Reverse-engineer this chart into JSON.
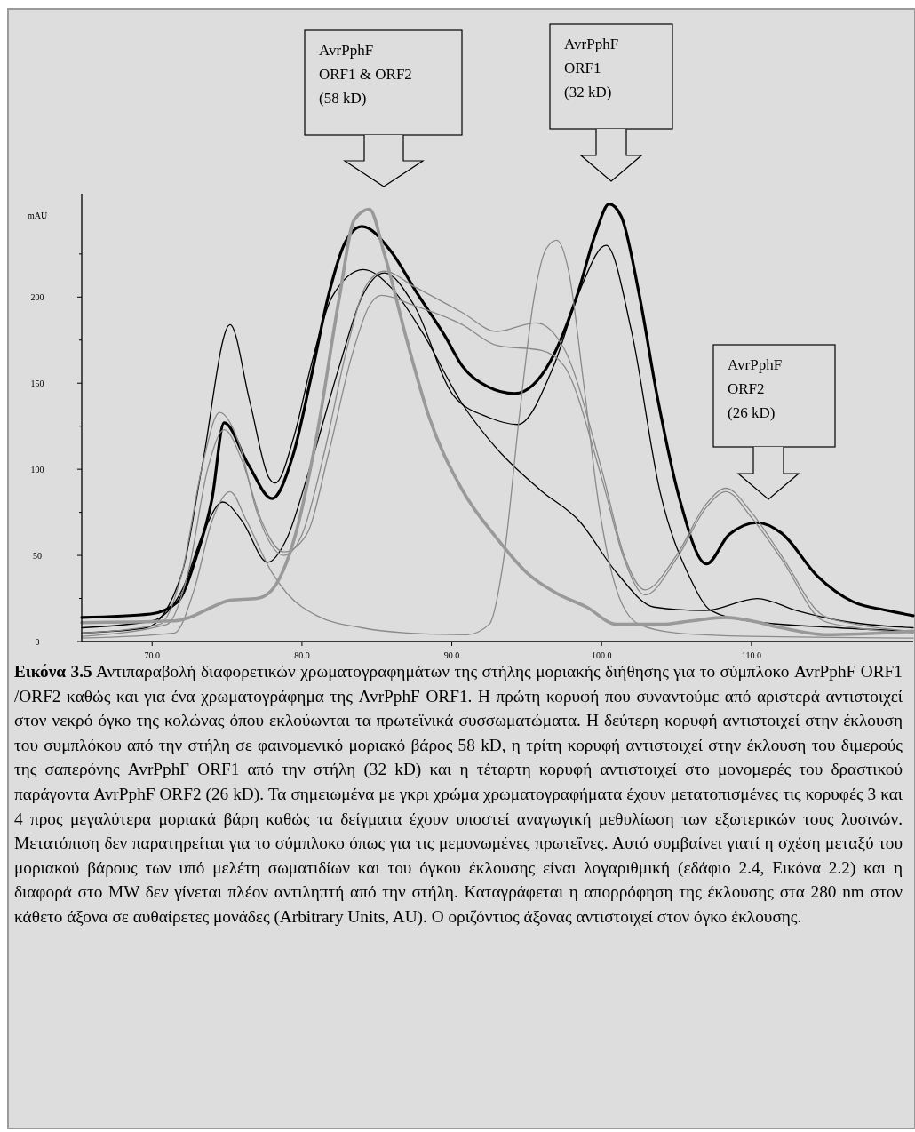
{
  "chart_data": {
    "type": "line",
    "ylabel": "mAU",
    "xlim": [
      65.3,
      120.8
    ],
    "ylim": [
      0,
      260
    ],
    "xticks": [
      {
        "value": 70,
        "label": "70.0"
      },
      {
        "value": 80,
        "label": "80.0"
      },
      {
        "value": 90,
        "label": "90.0"
      },
      {
        "value": 100,
        "label": "100.0"
      },
      {
        "value": 110,
        "label": "110.0"
      }
    ],
    "yticks": [
      0,
      {
        "value": 25,
        "label": null
      },
      50,
      {
        "value": 75,
        "label": null
      },
      100,
      {
        "value": 125,
        "label": null
      },
      150,
      {
        "value": 175,
        "label": null
      },
      200,
      {
        "value": 225,
        "label": null
      }
    ],
    "grid": false,
    "marker": "none",
    "line_style": "solid",
    "series": [
      {
        "color": "#000000",
        "x": [
          65.3,
          69.9,
          71.7,
          72.9,
          74.0,
          74.8,
          76.4,
          78.0,
          79.4,
          80.6,
          81.8,
          82.9,
          84.0,
          85.9,
          87.7,
          89.5,
          90.7,
          92.4,
          94.2,
          96.6,
          98.4,
          99.6,
          100.5,
          101.3,
          102.5,
          103.7,
          105.2,
          107.0,
          108.5,
          110.4,
          112.0,
          114.4,
          116.8,
          119.1,
          120.8
        ],
        "values": [
          14,
          16,
          23,
          48,
          83,
          127,
          103,
          83,
          108,
          153,
          202,
          232,
          241,
          227,
          202,
          178,
          160,
          148,
          144,
          163,
          202,
          237,
          254,
          247,
          202,
          143,
          83,
          45,
          62,
          69,
          63,
          38,
          23,
          18,
          15
        ]
      },
      {
        "color": "#000000",
        "x": [
          65.3,
          69.6,
          72.0,
          73.3,
          75.2,
          76.5,
          77.8,
          78.2,
          79.5,
          80.6,
          82.0,
          84.1,
          86.0,
          88.0,
          90.7,
          93.0,
          95.9,
          98.5,
          101.0,
          103.5,
          106.9,
          110.4,
          113.0,
          116.0,
          120.8
        ],
        "values": [
          5,
          8,
          40,
          100,
          184,
          140,
          95,
          92,
          120,
          160,
          200,
          216,
          205,
          180,
          138,
          112,
          88,
          70,
          40,
          20,
          18,
          25,
          18,
          12,
          8
        ]
      },
      {
        "color": "#000000",
        "x": [
          65.3,
          70.0,
          72.0,
          73.5,
          74.7,
          76.0,
          77.7,
          79.0,
          80.5,
          82.5,
          84.0,
          85.5,
          87.5,
          90.1,
          92.5,
          94.4,
          96.8,
          98.6,
          100.3,
          102.0,
          103.9,
          105.9,
          107.3,
          109.8,
          115.8,
          120.8
        ],
        "values": [
          8,
          12,
          30,
          65,
          81,
          70,
          46,
          60,
          100,
          160,
          200,
          214,
          195,
          143,
          130,
          126,
          160,
          205,
          230,
          180,
          87,
          37,
          18,
          12,
          8,
          6
        ]
      },
      {
        "color": "#8a8a8a",
        "x": [
          65.3,
          70.5,
          72.0,
          73.3,
          74.5,
          75.8,
          77.0,
          78.8,
          80.0,
          81.5,
          83.0,
          84.3,
          85.5,
          87.5,
          90.7,
          93.0,
          95.6,
          97.5,
          100.0,
          101.5,
          102.9,
          105.0,
          107.0,
          108.3,
          110.0,
          112.0,
          114.8,
          117.0,
          120.8
        ],
        "values": [
          5,
          10,
          40,
          100,
          133,
          115,
          75,
          50,
          62,
          110,
          170,
          207,
          215,
          206,
          191,
          180,
          185,
          170,
          100,
          50,
          30,
          50,
          80,
          89,
          75,
          50,
          15,
          10,
          6
        ]
      },
      {
        "color": "#8a8a8a",
        "x": [
          65.3,
          71.0,
          72.4,
          73.7,
          74.8,
          76.0,
          77.3,
          78.8,
          80.3,
          81.8,
          83.3,
          84.5,
          85.3,
          87.5,
          90.7,
          93.0,
          96.0,
          97.5,
          100.0,
          101.5,
          102.9,
          105.0,
          107.0,
          108.3,
          110.0,
          112.0,
          114.8,
          117.0,
          120.8
        ],
        "values": [
          3,
          10,
          40,
          100,
          123,
          105,
          70,
          52,
          62,
          110,
          165,
          195,
          201,
          195,
          184,
          172,
          169,
          160,
          95,
          48,
          27,
          48,
          78,
          87,
          72,
          48,
          12,
          8,
          5
        ]
      },
      {
        "color": "#8a8a8a",
        "x": [
          65.3,
          71.5,
          72.8,
          74.0,
          75.2,
          76.3,
          78.0,
          79.0,
          81.0,
          84.0,
          87.0,
          91.0,
          92.5,
          93.5,
          94.5,
          95.5,
          96.3,
          97.0,
          97.8,
          98.8,
          99.8,
          101.0,
          102.5,
          105.0,
          110.0,
          120.8
        ],
        "values": [
          2,
          5,
          30,
          70,
          87,
          70,
          40,
          28,
          15,
          8,
          5,
          4,
          10,
          50,
          130,
          200,
          228,
          233,
          215,
          150,
          80,
          30,
          10,
          5,
          3,
          2
        ]
      },
      {
        "color": "#999999",
        "x": [
          65.3,
          71.5,
          72.5,
          74.0,
          75.2,
          77.0,
          78.0,
          79.5,
          81.0,
          82.5,
          83.5,
          84.5,
          85.5,
          87.0,
          88.5,
          90.7,
          93.0,
          95.0,
          97.0,
          99.0,
          101.0,
          104.0,
          106.0,
          108.3,
          110.0,
          112.0,
          115.0,
          120.8
        ],
        "values": [
          11,
          12,
          14,
          20,
          24,
          25,
          30,
          60,
          120,
          200,
          245,
          251,
          225,
          175,
          130,
          88,
          60,
          40,
          28,
          20,
          10,
          10,
          12,
          14,
          12,
          8,
          4,
          6
        ]
      }
    ],
    "annotations": [
      "AvrPphF\nORF1 & ORF2\n(58 kD)",
      "AvrPphF\nORF1\n(32 kD)",
      "AvrPphF\nORF2\n(26 kD)",
      "Εικόνα 3.5 Αντιπαραβολή διαφορετικών χρωματογραφημάτων της στήλης μοριακής διήθησης για το σύμπλοκο AvrPphF ORF1 /ORF2 καθώς και για ένα χρωματογράφημα της AvrPphF ORF1. Η πρώτη κορυφή που συναντούμε από αριστερά αντιστοιχεί στον νεκρό όγκο της κολώνας όπου εκλούωνται τα πρωτεϊνικά συσσωματώματα. Η δεύτερη κορυφή αντιστοιχεί στην έκλουση του συμπλόκου από την στήλη σε φαινομενικό μοριακό βάρος 58 kD, η τρίτη κορυφή αντιστοιχεί στην έκλουση του διμερούς της σαπερόνης AvrPphF ORF1 από την στήλη (32 kD) και η τέταρτη κορυφή αντιστοιχεί στο μονομερές του δραστικού παράγοντα AvrPphF ORF2 (26 kD). Τα σημειωμένα με γκρι χρώμα χρωματογραφήματα έχουν μετατοπισμένες τις κορυφές 3 και 4 προς μεγαλύτερα μοριακά βάρη καθώς τα δείγματα έχουν υποστεί αναγωγική μεθυλίωση των εξωτερικών τους λυσινών. Μετατόπιση δεν παρατηρείται για το σύμπλοκο όπως για τις μεμονωμένες πρωτεΐνες. Αυτό συμβαίνει γιατί η σχέση μεταξύ του μοριακού βάρους των υπό μελέτη σωματιδίων και του όγκου έκλουσης είναι λογαριθμική (εδάφιο 2.4, Εικόνα 2.2) και η διαφορά στο MW δεν γίνεται πλέον αντιληπτή από την στήλη. Καταγράφεται η απορρόφηση της έκλουσης στα 280 nm στον κάθετο άξονα σε αυθαίρετες μονάδες (Arbitrary Units, AU). Ο οριζόντιος άξονας αντιστοιχεί στον όγκο έκλουσης."
    ]
  }
}
